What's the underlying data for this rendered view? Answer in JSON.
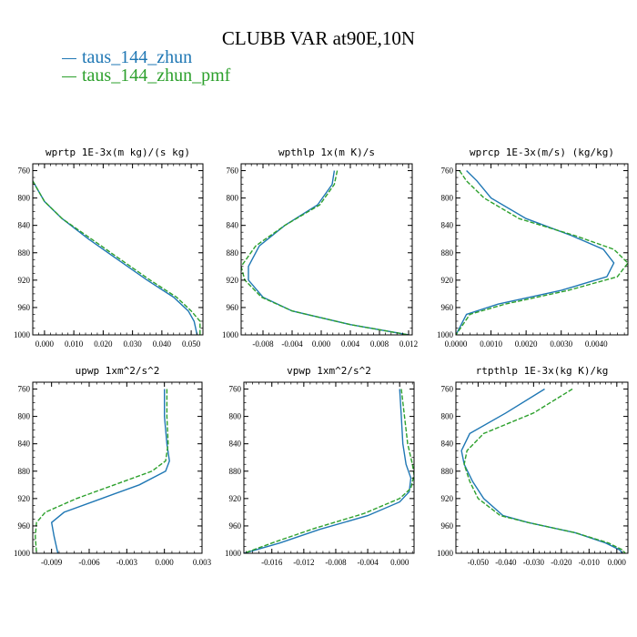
{
  "title": "CLUBB VAR at90E,10N",
  "legend": [
    {
      "label": "taus_144_zhun",
      "color": "#1f77b4"
    },
    {
      "label": "taus_144_zhun_pmf",
      "color": "#2ca02c"
    }
  ],
  "chart_data": [
    {
      "type": "line",
      "title": "wprtp  1E-3x(m kg)/(s kg)",
      "xlim": [
        -0.004,
        0.054
      ],
      "xticks": [
        0.0,
        0.01,
        0.02,
        0.03,
        0.04,
        0.05
      ],
      "xtick_labels": [
        "0.000",
        "0.010",
        "0.020",
        "0.030",
        "0.040",
        "0.050"
      ],
      "ylim": [
        750,
        1000
      ],
      "yticks": [
        760,
        800,
        840,
        880,
        920,
        960,
        1000
      ],
      "y_inverted": true,
      "series": [
        {
          "name": "taus_144_zhun",
          "color": "#1f77b4",
          "dashed": false,
          "points": [
            [
              -0.004,
              775
            ],
            [
              -0.002,
              790
            ],
            [
              0.0,
              805
            ],
            [
              0.006,
              830
            ],
            [
              0.015,
              860
            ],
            [
              0.025,
              890
            ],
            [
              0.035,
              920
            ],
            [
              0.044,
              945
            ],
            [
              0.049,
              965
            ],
            [
              0.051,
              980
            ],
            [
              0.052,
              1000
            ]
          ]
        },
        {
          "name": "taus_144_zhun_pmf",
          "color": "#2ca02c",
          "dashed": true,
          "points": [
            [
              -0.004,
              775
            ],
            [
              -0.002,
              790
            ],
            [
              0.0,
              805
            ],
            [
              0.006,
              830
            ],
            [
              0.016,
              860
            ],
            [
              0.026,
              890
            ],
            [
              0.036,
              920
            ],
            [
              0.045,
              945
            ],
            [
              0.05,
              965
            ],
            [
              0.053,
              980
            ],
            [
              0.053,
              1000
            ]
          ]
        }
      ]
    },
    {
      "type": "line",
      "title": "wpthlp  1x(m K)/s",
      "xlim": [
        -0.011,
        0.0125
      ],
      "xticks": [
        -0.008,
        -0.004,
        0.0,
        0.004,
        0.008,
        0.012
      ],
      "xtick_labels": [
        "-0.008",
        "-0.004",
        "0.000",
        "0.004",
        "0.008",
        "0.012"
      ],
      "ylim": [
        750,
        1000
      ],
      "yticks": [
        760,
        800,
        840,
        880,
        920,
        960,
        1000
      ],
      "y_inverted": true,
      "series": [
        {
          "name": "taus_144_zhun",
          "color": "#1f77b4",
          "dashed": false,
          "points": [
            [
              0.0018,
              760
            ],
            [
              0.0015,
              780
            ],
            [
              -0.0005,
              810
            ],
            [
              -0.005,
              840
            ],
            [
              -0.0085,
              870
            ],
            [
              -0.01,
              900
            ],
            [
              -0.01,
              920
            ],
            [
              -0.008,
              945
            ],
            [
              -0.004,
              965
            ],
            [
              0.004,
              985
            ],
            [
              0.012,
              1000
            ]
          ]
        },
        {
          "name": "taus_144_zhun_pmf",
          "color": "#2ca02c",
          "dashed": true,
          "points": [
            [
              0.0022,
              760
            ],
            [
              0.0018,
              780
            ],
            [
              -0.0002,
              810
            ],
            [
              -0.005,
              840
            ],
            [
              -0.009,
              870
            ],
            [
              -0.011,
              900
            ],
            [
              -0.0105,
              920
            ],
            [
              -0.0082,
              945
            ],
            [
              -0.004,
              965
            ],
            [
              0.004,
              985
            ],
            [
              0.012,
              1000
            ]
          ]
        }
      ]
    },
    {
      "type": "line",
      "title": "wprcp  1E-3x(m/s) (kg/kg)",
      "xlim": [
        0.0,
        0.0049
      ],
      "xticks": [
        0.0,
        0.001,
        0.002,
        0.003,
        0.004
      ],
      "xtick_labels": [
        "0.0000",
        "0.0010",
        "0.0020",
        "0.0030",
        "0.0040"
      ],
      "ylim": [
        750,
        1000
      ],
      "yticks": [
        760,
        800,
        840,
        880,
        920,
        960,
        1000
      ],
      "y_inverted": true,
      "series": [
        {
          "name": "taus_144_zhun",
          "color": "#1f77b4",
          "dashed": false,
          "points": [
            [
              0.0003,
              760
            ],
            [
              0.0006,
              775
            ],
            [
              0.001,
              800
            ],
            [
              0.002,
              830
            ],
            [
              0.0033,
              855
            ],
            [
              0.0042,
              875
            ],
            [
              0.0045,
              895
            ],
            [
              0.0043,
              915
            ],
            [
              0.003,
              935
            ],
            [
              0.0012,
              955
            ],
            [
              0.0003,
              970
            ],
            [
              0.0,
              1000
            ]
          ]
        },
        {
          "name": "taus_144_zhun_pmf",
          "color": "#2ca02c",
          "dashed": true,
          "points": [
            [
              0.0001,
              760
            ],
            [
              0.0003,
              775
            ],
            [
              0.0008,
              800
            ],
            [
              0.0018,
              830
            ],
            [
              0.0034,
              855
            ],
            [
              0.0045,
              875
            ],
            [
              0.0049,
              895
            ],
            [
              0.0046,
              915
            ],
            [
              0.0032,
              935
            ],
            [
              0.0014,
              955
            ],
            [
              0.0004,
              970
            ],
            [
              0.0,
              1000
            ]
          ]
        }
      ]
    },
    {
      "type": "line",
      "title": "upwp  1xm^2/s^2",
      "xlim": [
        -0.0105,
        0.003
      ],
      "xticks": [
        -0.009,
        -0.006,
        -0.003,
        0.0,
        0.003
      ],
      "xtick_labels": [
        "-0.009",
        "-0.006",
        "-0.003",
        "0.000",
        "0.003"
      ],
      "ylim": [
        750,
        1000
      ],
      "yticks": [
        760,
        800,
        840,
        880,
        920,
        960,
        1000
      ],
      "y_inverted": true,
      "series": [
        {
          "name": "taus_144_zhun",
          "color": "#1f77b4",
          "dashed": false,
          "points": [
            [
              0.0,
              760
            ],
            [
              0.0,
              800
            ],
            [
              0.0002,
              840
            ],
            [
              0.0004,
              865
            ],
            [
              0.0001,
              880
            ],
            [
              -0.002,
              900
            ],
            [
              -0.005,
              920
            ],
            [
              -0.008,
              940
            ],
            [
              -0.009,
              955
            ],
            [
              -0.0088,
              975
            ],
            [
              -0.0085,
              1000
            ]
          ]
        },
        {
          "name": "taus_144_zhun_pmf",
          "color": "#2ca02c",
          "dashed": true,
          "points": [
            [
              0.0002,
              760
            ],
            [
              0.0002,
              800
            ],
            [
              0.0003,
              840
            ],
            [
              0.0001,
              865
            ],
            [
              -0.001,
              880
            ],
            [
              -0.004,
              900
            ],
            [
              -0.007,
              920
            ],
            [
              -0.0095,
              940
            ],
            [
              -0.0102,
              955
            ],
            [
              -0.0103,
              975
            ],
            [
              -0.0102,
              1000
            ]
          ]
        }
      ]
    },
    {
      "type": "line",
      "title": "vpwp  1xm^2/s^2",
      "xlim": [
        -0.0195,
        0.0018
      ],
      "xticks": [
        -0.016,
        -0.012,
        -0.008,
        -0.004,
        0.0
      ],
      "xtick_labels": [
        "-0.016",
        "-0.012",
        "-0.008",
        "-0.004",
        "0.000"
      ],
      "ylim": [
        750,
        1000
      ],
      "yticks": [
        760,
        800,
        840,
        880,
        920,
        960,
        1000
      ],
      "y_inverted": true,
      "series": [
        {
          "name": "taus_144_zhun",
          "color": "#1f77b4",
          "dashed": false,
          "points": [
            [
              0.0,
              760
            ],
            [
              0.0002,
              800
            ],
            [
              0.0004,
              840
            ],
            [
              0.0008,
              870
            ],
            [
              0.0014,
              890
            ],
            [
              0.0012,
              910
            ],
            [
              0.0,
              925
            ],
            [
              -0.004,
              945
            ],
            [
              -0.01,
              965
            ],
            [
              -0.015,
              985
            ],
            [
              -0.0195,
              1000
            ]
          ]
        },
        {
          "name": "taus_144_zhun_pmf",
          "color": "#2ca02c",
          "dashed": true,
          "points": [
            [
              0.0002,
              760
            ],
            [
              0.0006,
              800
            ],
            [
              0.001,
              840
            ],
            [
              0.0016,
              870
            ],
            [
              0.0018,
              885
            ],
            [
              0.0014,
              905
            ],
            [
              0.0,
              920
            ],
            [
              -0.0045,
              942
            ],
            [
              -0.0105,
              963
            ],
            [
              -0.0155,
              983
            ],
            [
              -0.0195,
              1000
            ]
          ]
        }
      ]
    },
    {
      "type": "line",
      "title": "rtpthlp  1E-3x(kg K)/kg",
      "xlim": [
        -0.058,
        0.004
      ],
      "xticks": [
        -0.05,
        -0.04,
        -0.03,
        -0.02,
        -0.01,
        0.0
      ],
      "xtick_labels": [
        "-0.050",
        "-0.040",
        "-0.030",
        "-0.020",
        "-0.010",
        "0.000"
      ],
      "ylim": [
        750,
        1000
      ],
      "yticks": [
        760,
        800,
        840,
        880,
        920,
        960,
        1000
      ],
      "y_inverted": true,
      "series": [
        {
          "name": "taus_144_zhun",
          "color": "#1f77b4",
          "dashed": false,
          "points": [
            [
              -0.026,
              760
            ],
            [
              -0.04,
              795
            ],
            [
              -0.053,
              825
            ],
            [
              -0.056,
              850
            ],
            [
              -0.055,
              870
            ],
            [
              -0.052,
              895
            ],
            [
              -0.048,
              920
            ],
            [
              -0.041,
              945
            ],
            [
              -0.032,
              955
            ],
            [
              -0.015,
              970
            ],
            [
              -0.004,
              985
            ],
            [
              0.001,
              995
            ],
            [
              0.002,
              1000
            ]
          ]
        },
        {
          "name": "taus_144_zhun_pmf",
          "color": "#2ca02c",
          "dashed": true,
          "points": [
            [
              -0.016,
              760
            ],
            [
              -0.03,
              795
            ],
            [
              -0.048,
              825
            ],
            [
              -0.054,
              850
            ],
            [
              -0.055,
              870
            ],
            [
              -0.053,
              895
            ],
            [
              -0.05,
              920
            ],
            [
              -0.042,
              945
            ],
            [
              -0.032,
              955
            ],
            [
              -0.015,
              970
            ],
            [
              -0.003,
              985
            ],
            [
              0.002,
              995
            ],
            [
              0.003,
              1000
            ]
          ]
        }
      ]
    }
  ]
}
